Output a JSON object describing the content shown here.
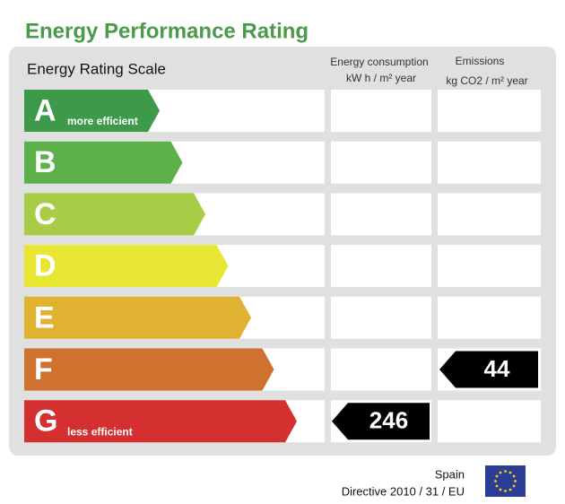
{
  "title": "Energy Performance Rating",
  "scale_label": "Energy Rating Scale",
  "consumption_header": [
    "Energy consumption",
    "kW h / m² year"
  ],
  "emissions_header": [
    "Emissions",
    "kg CO2 / m² year"
  ],
  "ratings": [
    {
      "letter": "A",
      "note": "more efficient",
      "color": "#3d9a4b"
    },
    {
      "letter": "B",
      "color": "#5cb04a"
    },
    {
      "letter": "C",
      "color": "#a7cc45"
    },
    {
      "letter": "D",
      "color": "#e6e633"
    },
    {
      "letter": "E",
      "color": "#e0b232"
    },
    {
      "letter": "F",
      "color": "#cf7230"
    },
    {
      "letter": "G",
      "note": "less efficient",
      "color": "#d3302f"
    }
  ],
  "consumption": {
    "rating": "G",
    "value": 246
  },
  "emissions": {
    "rating": "F",
    "value": 44
  },
  "footer": {
    "country": "Spain",
    "directive": "Directive 2010 / 31 / EU"
  }
}
